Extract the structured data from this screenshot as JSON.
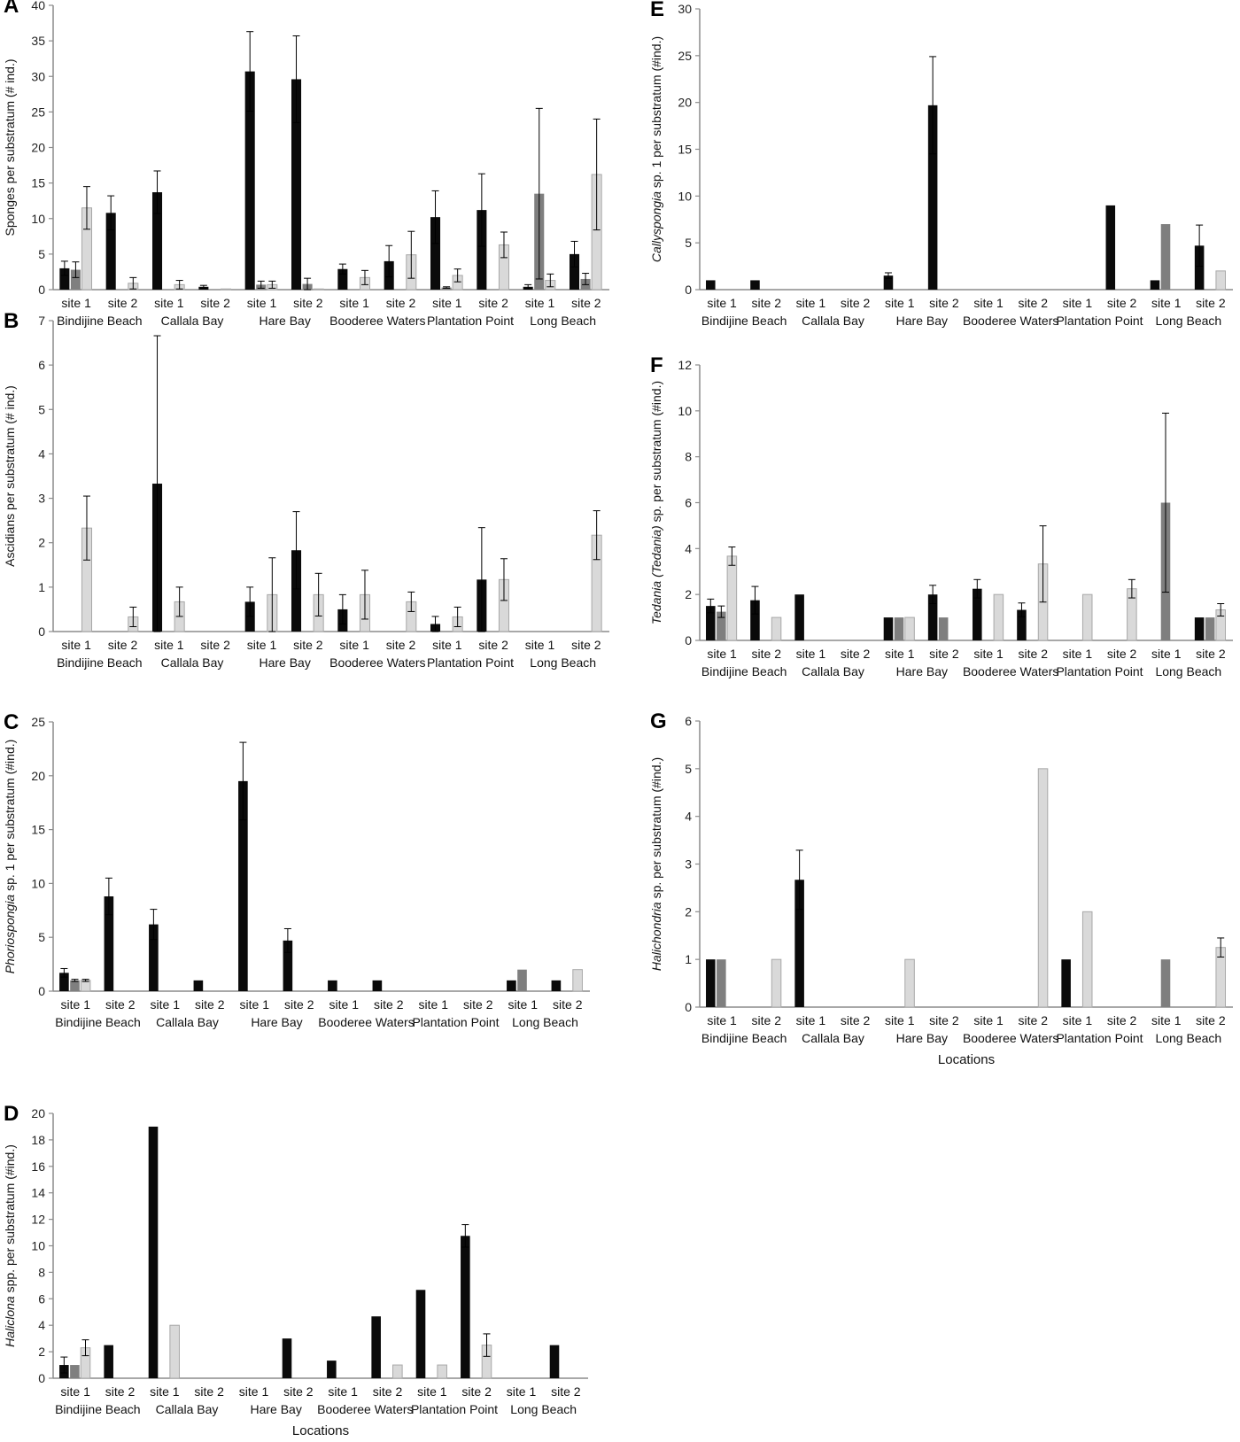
{
  "colors": {
    "black": "#0a0a0a",
    "dark_gray": "#7f7f7f",
    "light_gray": "#d9d9d9",
    "axis": "#8c8c8c",
    "error_bar": "#000000"
  },
  "chart_data": [
    {
      "panel": "A",
      "type": "bar",
      "ylabel": [
        {
          "text": "Sponges per substratum (# ind.)",
          "italic": false
        }
      ],
      "ylim": [
        0,
        40
      ],
      "yticks": [
        0,
        5,
        10,
        15,
        20,
        25,
        30,
        35,
        40
      ],
      "sites": [
        "site 1",
        "site 2",
        "site 1",
        "site 2",
        "site 1",
        "site 2",
        "site 1",
        "site 2",
        "site 1",
        "site 2",
        "site 1",
        "site 2"
      ],
      "locations": [
        "Bindijine Beach",
        "Callala Bay",
        "Hare Bay",
        "Booderee Waters",
        "Plantation Point",
        "Long Beach"
      ],
      "xlabel": "",
      "series": [
        {
          "values": [
            3.0,
            10.8,
            13.7,
            0.4,
            30.7,
            29.6,
            2.9,
            4.0,
            10.2,
            11.2,
            0.4,
            5.0
          ],
          "errors": [
            1.0,
            2.4,
            3.0,
            0.2,
            5.6,
            6.1,
            0.7,
            2.2,
            3.7,
            5.1,
            0.3,
            1.8
          ]
        },
        {
          "values": [
            2.8,
            null,
            null,
            null,
            0.7,
            0.8,
            null,
            null,
            0.3,
            null,
            13.5,
            1.5
          ],
          "errors": [
            1.1,
            null,
            null,
            null,
            0.5,
            0.8,
            null,
            null,
            0.1,
            null,
            12.0,
            0.8
          ]
        },
        {
          "values": [
            11.5,
            0.9,
            0.7,
            0.1,
            0.7,
            0.1,
            1.7,
            4.9,
            2.0,
            6.3,
            1.3,
            16.2
          ],
          "errors": [
            3.0,
            0.8,
            0.6,
            0.0,
            0.5,
            0.0,
            1.0,
            3.3,
            0.9,
            1.8,
            0.9,
            7.8
          ]
        }
      ]
    },
    {
      "panel": "B",
      "type": "bar",
      "ylabel": [
        {
          "text": "Ascidians per substratum (# ind.)",
          "italic": false
        }
      ],
      "ylim": [
        0,
        7
      ],
      "yticks": [
        0,
        1,
        2,
        3,
        4,
        5,
        6,
        7
      ],
      "sites": [
        "site 1",
        "site 2",
        "site 1",
        "site 2",
        "site 1",
        "site 2",
        "site 1",
        "site 2",
        "site 1",
        "site 2",
        "site 1",
        "site 2"
      ],
      "locations": [
        "Bindijine Beach",
        "Callala Bay",
        "Hare Bay",
        "Booderee Waters",
        "Plantation Point",
        "Long Beach"
      ],
      "xlabel": "",
      "series": [
        {
          "values": [
            null,
            null,
            3.33,
            null,
            0.67,
            1.83,
            0.5,
            null,
            0.17,
            1.17,
            null,
            null
          ],
          "errors": [
            null,
            null,
            3.33,
            null,
            0.33,
            0.87,
            0.33,
            null,
            0.17,
            1.17,
            null,
            null
          ]
        },
        {
          "values": [
            null,
            null,
            null,
            null,
            null,
            null,
            null,
            null,
            null,
            null,
            null,
            null
          ],
          "errors": [
            null,
            null,
            null,
            null,
            null,
            null,
            null,
            null,
            null,
            null,
            null,
            null
          ]
        },
        {
          "values": [
            2.33,
            0.33,
            0.67,
            null,
            0.83,
            0.83,
            0.83,
            0.67,
            0.33,
            1.17,
            null,
            2.17
          ],
          "errors": [
            0.72,
            0.22,
            0.33,
            null,
            0.83,
            0.48,
            0.55,
            0.22,
            0.22,
            0.47,
            null,
            0.55
          ]
        }
      ]
    },
    {
      "panel": "C",
      "type": "bar",
      "ylabel": [
        {
          "text": "Phoriospongia",
          "italic": true
        },
        {
          "text": " sp. 1 per substratum (#ind.)",
          "italic": false
        }
      ],
      "ylim": [
        0,
        25
      ],
      "yticks": [
        0,
        5,
        10,
        15,
        20,
        25
      ],
      "sites": [
        "site 1",
        "site 2",
        "site 1",
        "site 2",
        "site 1",
        "site 2",
        "site 1",
        "site 2",
        "site 1",
        "site 2",
        "site 1",
        "site 2"
      ],
      "locations": [
        "Bindijine Beach",
        "Callala Bay",
        "Hare Bay",
        "Booderee Waters",
        "Plantation Point",
        "Long Beach"
      ],
      "xlabel": "",
      "series": [
        {
          "values": [
            1.7,
            8.8,
            6.2,
            1.0,
            19.5,
            4.7,
            1.0,
            1.0,
            null,
            null,
            1.0,
            1.0
          ],
          "errors": [
            0.4,
            1.7,
            1.4,
            0.0,
            3.6,
            1.1,
            0.0,
            0.0,
            null,
            null,
            0.0,
            0.0
          ]
        },
        {
          "values": [
            1.0,
            null,
            null,
            null,
            null,
            null,
            null,
            null,
            null,
            null,
            2.0,
            null
          ],
          "errors": [
            0.1,
            null,
            null,
            null,
            null,
            null,
            null,
            null,
            null,
            null,
            0.0,
            null
          ]
        },
        {
          "values": [
            1.0,
            null,
            null,
            null,
            null,
            null,
            null,
            null,
            null,
            null,
            null,
            2.0
          ],
          "errors": [
            0.1,
            null,
            null,
            null,
            null,
            null,
            null,
            null,
            null,
            null,
            null,
            0.0
          ]
        }
      ]
    },
    {
      "panel": "D",
      "type": "bar",
      "ylabel": [
        {
          "text": "Haliclona",
          "italic": true
        },
        {
          "text": " spp. per substratum (#ind.)",
          "italic": false
        }
      ],
      "ylim": [
        0,
        20
      ],
      "yticks": [
        0,
        2,
        4,
        6,
        8,
        10,
        12,
        14,
        16,
        18,
        20
      ],
      "sites": [
        "site 1",
        "site 2",
        "site 1",
        "site 2",
        "site 1",
        "site 2",
        "site 1",
        "site 2",
        "site 1",
        "site 2",
        "site 1",
        "site 2"
      ],
      "locations": [
        "Bindijine Beach",
        "Callala Bay",
        "Hare Bay",
        "Booderee Waters",
        "Plantation Point",
        "Long Beach"
      ],
      "xlabel": "Locations",
      "series": [
        {
          "values": [
            1.0,
            2.5,
            19.0,
            null,
            null,
            3.0,
            1.33,
            4.67,
            6.67,
            10.75,
            null,
            2.5
          ],
          "errors": [
            0.6,
            0.0,
            0.0,
            null,
            null,
            0.0,
            0.0,
            0.0,
            0.0,
            0.85,
            null,
            0.0
          ]
        },
        {
          "values": [
            1.0,
            null,
            null,
            null,
            null,
            null,
            null,
            null,
            null,
            null,
            null,
            null
          ],
          "errors": [
            0.0,
            null,
            null,
            null,
            null,
            null,
            null,
            null,
            null,
            null,
            null,
            null
          ]
        },
        {
          "values": [
            2.3,
            null,
            4.0,
            null,
            null,
            null,
            null,
            1.0,
            1.0,
            2.5,
            null,
            null
          ],
          "errors": [
            0.6,
            null,
            0.0,
            null,
            null,
            null,
            null,
            0.0,
            0.0,
            0.85,
            null,
            null
          ]
        }
      ]
    },
    {
      "panel": "E",
      "type": "bar",
      "ylabel": [
        {
          "text": "Callyspongia",
          "italic": true
        },
        {
          "text": " sp. 1 per substratum (#ind.)",
          "italic": false
        }
      ],
      "ylim": [
        0,
        30
      ],
      "yticks": [
        0,
        5,
        10,
        15,
        20,
        25,
        30
      ],
      "sites": [
        "site 1",
        "site 2",
        "site 1",
        "site 2",
        "site 1",
        "site 2",
        "site 1",
        "site 2",
        "site 1",
        "site 2",
        "site 1",
        "site 2"
      ],
      "locations": [
        "Bindijine Beach",
        "Callala Bay",
        "Hare Bay",
        "Booderee Waters",
        "Plantation Point",
        "Long Beach"
      ],
      "xlabel": "",
      "series": [
        {
          "values": [
            1.0,
            1.0,
            null,
            null,
            1.5,
            19.7,
            null,
            null,
            null,
            9.0,
            1.0,
            4.7
          ],
          "errors": [
            0.0,
            0.0,
            null,
            null,
            0.3,
            5.2,
            null,
            null,
            null,
            0.0,
            0.0,
            2.2
          ]
        },
        {
          "values": [
            null,
            null,
            null,
            null,
            null,
            null,
            null,
            null,
            null,
            null,
            7.0,
            null
          ],
          "errors": [
            null,
            null,
            null,
            null,
            null,
            null,
            null,
            null,
            null,
            null,
            0.0,
            null
          ]
        },
        {
          "values": [
            null,
            null,
            null,
            null,
            null,
            null,
            null,
            null,
            null,
            null,
            null,
            2.0
          ],
          "errors": [
            null,
            null,
            null,
            null,
            null,
            null,
            null,
            null,
            null,
            null,
            null,
            0.0
          ]
        }
      ]
    },
    {
      "panel": "F",
      "type": "bar",
      "ylabel": [
        {
          "text": "Tedania (Tedania)",
          "italic": true
        },
        {
          "text": " sp. per substratum (#ind.)",
          "italic": false
        }
      ],
      "ylim": [
        0,
        12
      ],
      "yticks": [
        0,
        2,
        4,
        6,
        8,
        10,
        12
      ],
      "sites": [
        "site 1",
        "site 2",
        "site 1",
        "site 2",
        "site 1",
        "site 2",
        "site 1",
        "site 2",
        "site 1",
        "site 2",
        "site 1",
        "site 2"
      ],
      "locations": [
        "Bindijine Beach",
        "Callala Bay",
        "Hare Bay",
        "Booderee Waters",
        "Plantation Point",
        "Long Beach"
      ],
      "xlabel": "",
      "series": [
        {
          "values": [
            1.5,
            1.75,
            2.0,
            null,
            1.0,
            2.0,
            2.25,
            1.33,
            null,
            null,
            null,
            1.0
          ],
          "errors": [
            0.3,
            0.6,
            0.0,
            null,
            0.0,
            0.4,
            0.4,
            0.3,
            null,
            null,
            null,
            0.0
          ]
        },
        {
          "values": [
            1.25,
            null,
            null,
            null,
            1.0,
            1.0,
            null,
            null,
            null,
            null,
            6.0,
            1.0
          ],
          "errors": [
            0.25,
            null,
            null,
            null,
            0.0,
            0.0,
            null,
            null,
            null,
            null,
            3.9,
            0.0
          ]
        },
        {
          "values": [
            3.67,
            1.0,
            null,
            null,
            1.0,
            null,
            2.0,
            3.33,
            2.0,
            2.25,
            null,
            1.33
          ],
          "errors": [
            0.4,
            0.0,
            null,
            null,
            0.0,
            null,
            0.0,
            1.66,
            0.0,
            0.4,
            null,
            0.27
          ]
        }
      ]
    },
    {
      "panel": "G",
      "type": "bar",
      "ylabel": [
        {
          "text": "Halichondria",
          "italic": true
        },
        {
          "text": " sp. per substratum (#ind.)",
          "italic": false
        }
      ],
      "ylim": [
        0,
        6
      ],
      "yticks": [
        0,
        1,
        2,
        3,
        4,
        5,
        6
      ],
      "sites": [
        "site 1",
        "site 2",
        "site 1",
        "site 2",
        "site 1",
        "site 2",
        "site 1",
        "site 2",
        "site 1",
        "site 2",
        "site 1",
        "site 2"
      ],
      "locations": [
        "Bindijine Beach",
        "Callala Bay",
        "Hare Bay",
        "Booderee Waters",
        "Plantation Point",
        "Long Beach"
      ],
      "xlabel": "Locations",
      "series": [
        {
          "values": [
            1.0,
            null,
            2.67,
            null,
            null,
            null,
            null,
            null,
            1.0,
            null,
            null,
            null
          ],
          "errors": [
            0.0,
            null,
            0.62,
            null,
            null,
            null,
            null,
            null,
            0.0,
            null,
            null,
            null
          ]
        },
        {
          "values": [
            1.0,
            null,
            null,
            null,
            null,
            null,
            null,
            null,
            null,
            null,
            1.0,
            null
          ],
          "errors": [
            0.0,
            null,
            null,
            null,
            null,
            null,
            null,
            null,
            null,
            null,
            0.0,
            null
          ]
        },
        {
          "values": [
            null,
            1.0,
            null,
            null,
            1.0,
            null,
            null,
            5.0,
            2.0,
            null,
            null,
            1.25
          ],
          "errors": [
            null,
            0.0,
            null,
            null,
            0.0,
            null,
            null,
            0.0,
            0.0,
            null,
            null,
            0.2
          ]
        }
      ]
    }
  ]
}
